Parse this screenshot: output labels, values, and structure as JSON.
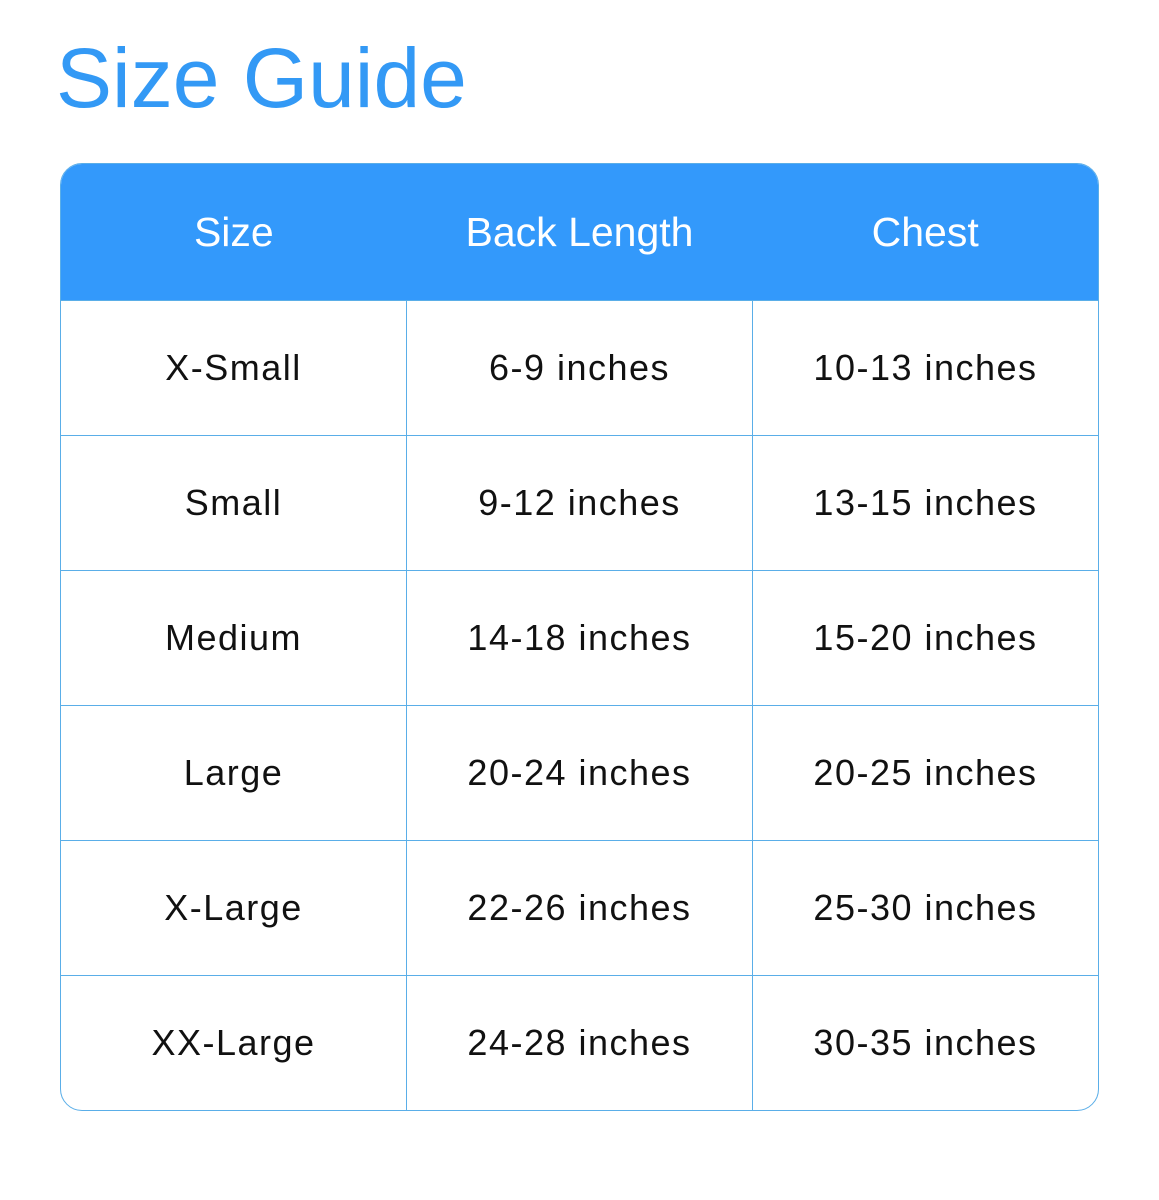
{
  "title": "Size Guide",
  "colors": {
    "accent": "#3399fb",
    "border": "#5aaee8"
  },
  "table": {
    "headers": [
      "Size",
      "Back Length",
      "Chest"
    ],
    "rows": [
      [
        "X-Small",
        "6-9 inches",
        "10-13 inches"
      ],
      [
        "Small",
        "9-12 inches",
        "13-15 inches"
      ],
      [
        "Medium",
        "14-18 inches",
        "15-20 inches"
      ],
      [
        "Large",
        "20-24 inches",
        "20-25 inches"
      ],
      [
        "X-Large",
        "22-26 inches",
        "25-30 inches"
      ],
      [
        "XX-Large",
        "24-28 inches",
        "30-35 inches"
      ]
    ]
  }
}
